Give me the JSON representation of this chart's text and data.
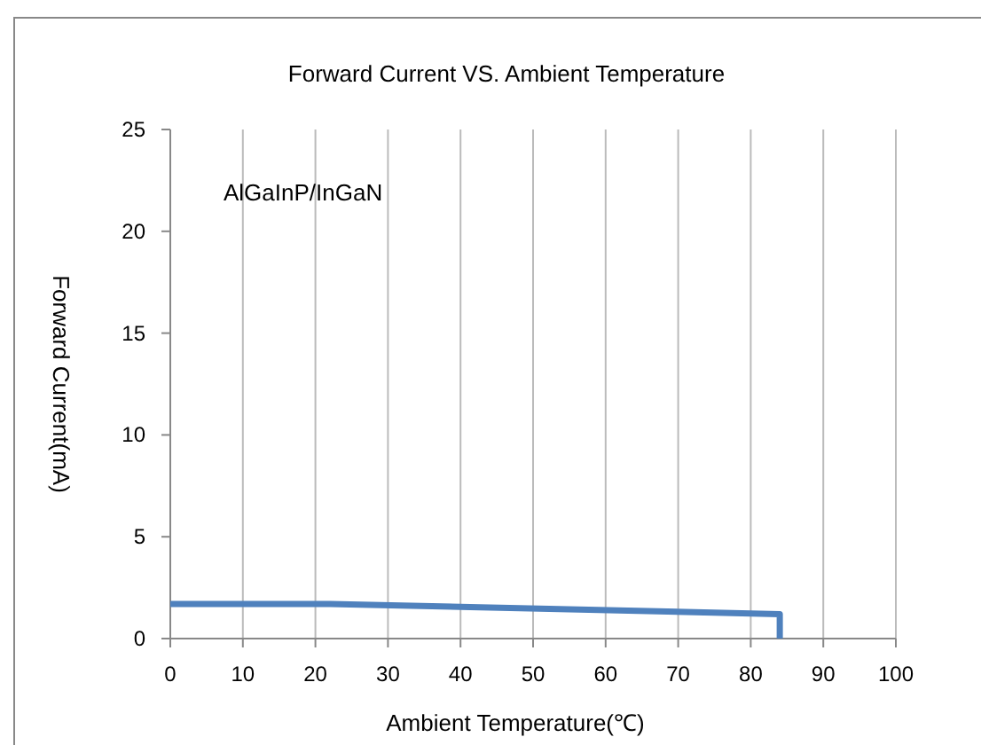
{
  "chart_data": {
    "type": "line",
    "title": "Forward Current  VS.  Ambient  Temperature",
    "xlabel": "Ambient  Temperature(℃)",
    "ylabel": "Forward    Current(mA)",
    "annotations": [
      "AlGaInP/InGaN"
    ],
    "x": [
      0,
      22,
      84,
      84
    ],
    "series": [
      {
        "color": "#4f81bd",
        "values": [
          1.7,
          1.7,
          1.2,
          0
        ]
      }
    ],
    "xlim": [
      0,
      100
    ],
    "xticks": [
      0,
      10,
      20,
      30,
      40,
      50,
      60,
      70,
      80,
      90,
      100
    ],
    "ylim": [
      0,
      25
    ],
    "yticks": [
      0,
      5,
      10,
      15,
      20,
      25
    ],
    "grid": "x",
    "marker": "none",
    "line_style": "solid"
  }
}
